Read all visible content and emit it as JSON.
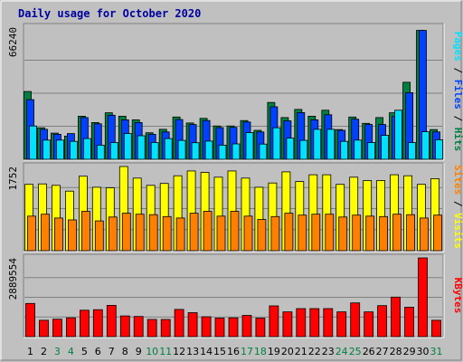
{
  "title": "Daily usage for October 2020",
  "colors": {
    "background": "#c0c0c0",
    "frame_dark": "#808080",
    "frame_light": "#ffffff",
    "title": "#0000a0",
    "grid": "#808080",
    "hits": "#008040",
    "files": "#0040ff",
    "pages": "#00e0ff",
    "visits": "#ffff00",
    "sites": "#ff8000",
    "kbytes": "#ff0000",
    "weekday_label": "#000000",
    "weekend_label": "#008040"
  },
  "chart_data": {
    "type": "bar",
    "categories": [
      "1",
      "2",
      "3",
      "4",
      "5",
      "6",
      "7",
      "8",
      "9",
      "10",
      "11",
      "12",
      "13",
      "14",
      "15",
      "16",
      "17",
      "18",
      "19",
      "20",
      "21",
      "22",
      "23",
      "24",
      "25",
      "26",
      "27",
      "28",
      "29",
      "30",
      "31"
    ],
    "weekend_days": [
      "3",
      "4",
      "10",
      "11",
      "17",
      "18",
      "24",
      "25",
      "31"
    ],
    "panels": [
      {
        "id": "hits-files-pages",
        "max_label": "66240",
        "max": 66240,
        "legend": [
          "Pages",
          "Files",
          "Hits"
        ],
        "series": [
          {
            "name": "Hits",
            "color_key": "hits",
            "values": [
              34000,
              15800,
              13100,
              11600,
              21600,
              18400,
              23300,
              21600,
              19800,
              13300,
              15000,
              21200,
              18200,
              20500,
              16700,
              16700,
              19400,
              14500,
              28500,
              20900,
              25000,
              21600,
              24600,
              14900,
              21200,
              18000,
              20900,
              23300,
              38600,
              64600,
              14900
            ]
          },
          {
            "name": "Files",
            "color_key": "files",
            "values": [
              29900,
              15000,
              12500,
              12900,
              20900,
              17800,
              22100,
              19800,
              18400,
              12500,
              13700,
              19900,
              17400,
              19400,
              15900,
              16000,
              18700,
              13700,
              26300,
              19300,
              23400,
              19800,
              22300,
              14500,
              20100,
              17400,
              17400,
              21600,
              33400,
              64600,
              13700
            ]
          },
          {
            "name": "Pages",
            "color_key": "pages",
            "values": [
              16700,
              9600,
              9600,
              9000,
              10400,
              7100,
              8400,
              12900,
              11800,
              8400,
              10400,
              9500,
              8300,
              9100,
              7100,
              7700,
              13400,
              7600,
              15800,
              10600,
              9500,
              15000,
              15000,
              9000,
              9600,
              8400,
              12000,
              24600,
              8400,
              13800,
              9800
            ]
          }
        ]
      },
      {
        "id": "visits-sites",
        "max_label": "1752",
        "max": 1752,
        "legend": [
          "Sites",
          "Visits"
        ],
        "series": [
          {
            "name": "Visits",
            "color_key": "visits",
            "values": [
              1380,
              1390,
              1360,
              1240,
              1550,
              1320,
              1310,
              1752,
              1510,
              1360,
              1400,
              1560,
              1660,
              1630,
              1530,
              1660,
              1510,
              1320,
              1410,
              1640,
              1440,
              1580,
              1580,
              1380,
              1530,
              1460,
              1460,
              1580,
              1560,
              1380,
              1500
            ]
          },
          {
            "name": "Sites",
            "color_key": "sites",
            "values": [
              720,
              760,
              680,
              640,
              820,
              620,
              700,
              780,
              760,
              750,
              710,
              680,
              780,
              820,
              720,
              820,
              720,
              650,
              710,
              780,
              740,
              760,
              760,
              700,
              740,
              720,
              710,
              760,
              750,
              680,
              740
            ]
          }
        ]
      },
      {
        "id": "kbytes",
        "max_label": "2889554",
        "max": 2889554,
        "legend": [
          "KBytes"
        ],
        "series": [
          {
            "name": "KBytes",
            "color_key": "kbytes",
            "values": [
              1220000,
              600000,
              640000,
              690000,
              970000,
              990000,
              1150000,
              760000,
              740000,
              630000,
              630000,
              1000000,
              880000,
              730000,
              680000,
              690000,
              780000,
              680000,
              1130000,
              910000,
              1030000,
              1030000,
              1030000,
              910000,
              1240000,
              910000,
              1140000,
              1450000,
              1080000,
              2889554,
              600000
            ]
          }
        ]
      }
    ]
  }
}
